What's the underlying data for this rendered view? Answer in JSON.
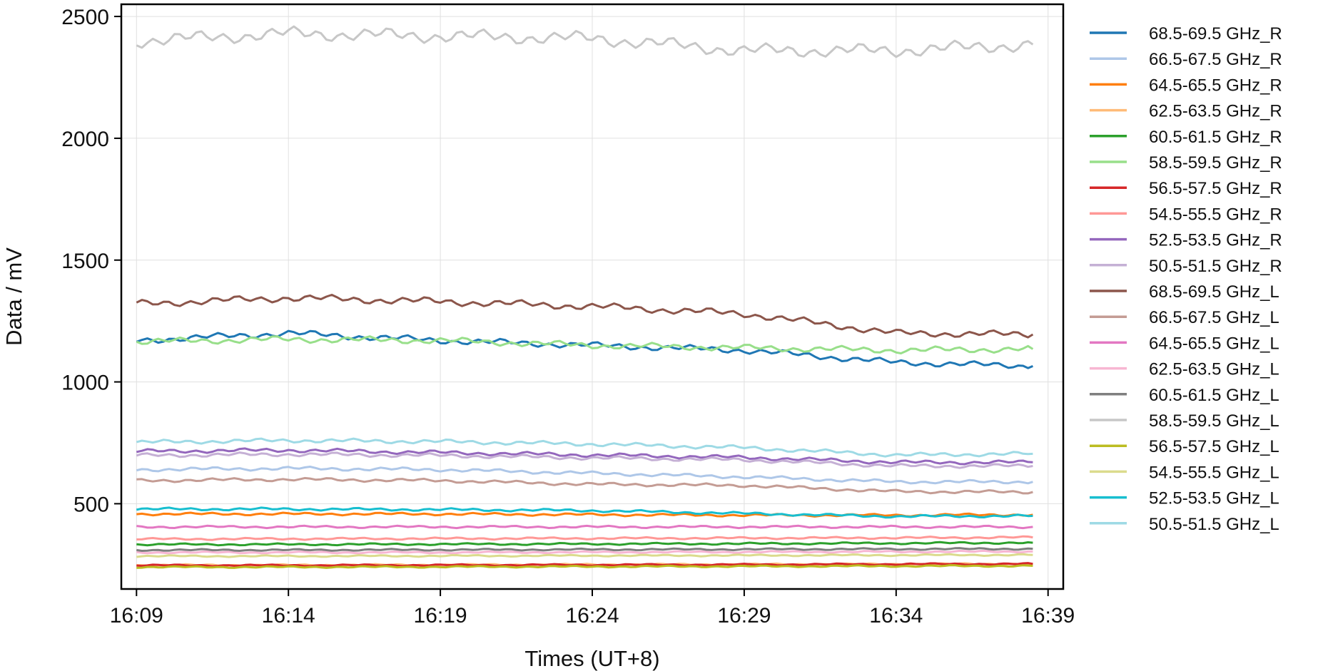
{
  "chart_data": {
    "type": "line",
    "xlabel": "Times (UT+8)",
    "ylabel": "Data / mV",
    "x_range": [
      "16:08:30",
      "16:39:30"
    ],
    "ylim": [
      150,
      2550
    ],
    "x_ticks": [
      "16:09",
      "16:14",
      "16:19",
      "16:24",
      "16:29",
      "16:34",
      "16:39"
    ],
    "y_ticks": [
      500,
      1000,
      1500,
      2000,
      2500
    ],
    "grid": true,
    "legend": "right",
    "x": [
      "16:09",
      "16:14",
      "16:19",
      "16:24",
      "16:29",
      "16:34",
      "16:38:30"
    ],
    "series": [
      {
        "name": "68.5-69.5 GHz_R",
        "color": "#1f77b4",
        "values": [
          1170,
          1200,
          1170,
          1150,
          1130,
          1080,
          1065
        ]
      },
      {
        "name": "66.5-67.5 GHz_R",
        "color": "#aec7e8",
        "values": [
          640,
          645,
          640,
          625,
          610,
          590,
          590
        ]
      },
      {
        "name": "64.5-65.5 GHz_R",
        "color": "#ff7f0e",
        "values": [
          458,
          458,
          458,
          455,
          453,
          453,
          455
        ]
      },
      {
        "name": "62.5-63.5 GHz_R",
        "color": "#ffbb78",
        "values": [
          248,
          248,
          249,
          250,
          251,
          252,
          253
        ]
      },
      {
        "name": "60.5-61.5 GHz_R",
        "color": "#2ca02c",
        "values": [
          333,
          333,
          334,
          335,
          336,
          338,
          340
        ]
      },
      {
        "name": "58.5-59.5 GHz_R",
        "color": "#98df8a",
        "values": [
          1165,
          1175,
          1170,
          1150,
          1140,
          1130,
          1135
        ]
      },
      {
        "name": "56.5-57.5 GHz_R",
        "color": "#d62728",
        "values": [
          247,
          247,
          248,
          249,
          250,
          252,
          253
        ]
      },
      {
        "name": "54.5-55.5 GHz_R",
        "color": "#ff9896",
        "values": [
          355,
          356,
          357,
          358,
          359,
          360,
          362
        ]
      },
      {
        "name": "52.5-53.5 GHz_R",
        "color": "#9467bd",
        "values": [
          715,
          720,
          710,
          700,
          690,
          670,
          670
        ]
      },
      {
        "name": "50.5-51.5 GHz_R",
        "color": "#c5b0d5",
        "values": [
          698,
          703,
          698,
          688,
          680,
          655,
          655
        ]
      },
      {
        "name": "68.5-69.5 GHz_L",
        "color": "#8c564b",
        "values": [
          1320,
          1345,
          1330,
          1310,
          1280,
          1200,
          1195
        ]
      },
      {
        "name": "66.5-67.5 GHz_L",
        "color": "#c49c94",
        "values": [
          595,
          600,
          595,
          580,
          575,
          550,
          548
        ]
      },
      {
        "name": "64.5-65.5 GHz_L",
        "color": "#e377c2",
        "values": [
          405,
          405,
          405,
          405,
          405,
          405,
          405
        ]
      },
      {
        "name": "62.5-63.5 GHz_L",
        "color": "#f7b6d2",
        "values": [
          300,
          300,
          300,
          301,
          302,
          303,
          304
        ]
      },
      {
        "name": "60.5-61.5 GHz_L",
        "color": "#7f7f7f",
        "values": [
          310,
          310,
          311,
          312,
          313,
          314,
          315
        ]
      },
      {
        "name": "58.5-59.5 GHz_L",
        "color": "#c7c7c7",
        "values": [
          2400,
          2430,
          2420,
          2410,
          2360,
          2360,
          2385
        ]
      },
      {
        "name": "56.5-57.5 GHz_L",
        "color": "#bcbd22",
        "values": [
          240,
          240,
          241,
          242,
          243,
          244,
          245
        ]
      },
      {
        "name": "54.5-55.5 GHz_L",
        "color": "#dbdb8d",
        "values": [
          285,
          285,
          286,
          287,
          288,
          289,
          290
        ]
      },
      {
        "name": "52.5-53.5 GHz_L",
        "color": "#17becf",
        "values": [
          478,
          478,
          476,
          472,
          460,
          448,
          450
        ]
      },
      {
        "name": "50.5-51.5 GHz_L",
        "color": "#9edae5",
        "values": [
          752,
          760,
          755,
          745,
          730,
          700,
          705
        ]
      }
    ]
  }
}
